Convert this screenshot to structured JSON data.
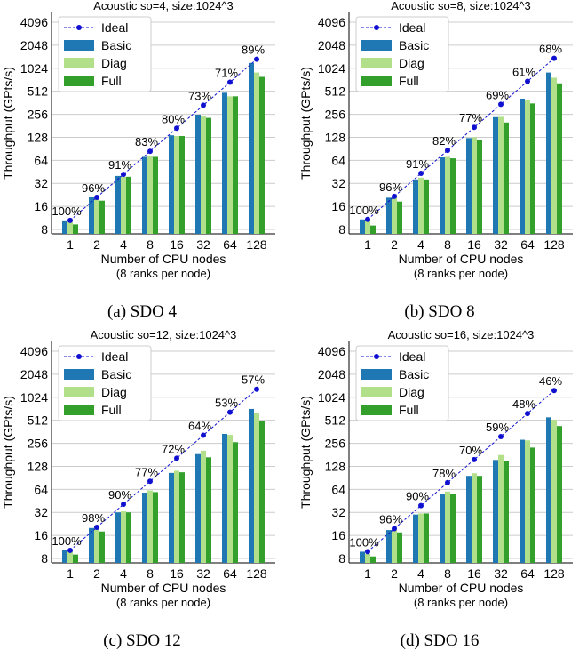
{
  "colors": {
    "ideal": "#1010d0",
    "basic": "#1f78b4",
    "diag": "#b2df8a",
    "full": "#33a02c"
  },
  "legend_labels": [
    "Ideal",
    "Basic",
    "Diag",
    "Full"
  ],
  "chart_data": [
    {
      "type": "bar",
      "title": "Acoustic so=4, size:1024^3",
      "caption": "(a) SDO 4",
      "xlabel": "Number of CPU nodes",
      "xlabel2": "(8 ranks per node)",
      "ylabel": "Throughput (GPts/s)",
      "yscale": "log2",
      "yticks": [
        "8",
        "16",
        "32",
        "64",
        "128",
        "256",
        "512",
        "1024",
        "2048",
        "4096"
      ],
      "ylim": [
        7,
        5500
      ],
      "categories": [
        "1",
        "2",
        "4",
        "8",
        "16",
        "32",
        "64",
        "128"
      ],
      "series": [
        {
          "name": "Ideal",
          "type": "line",
          "values": [
            10.5,
            21,
            42,
            84,
            168,
            336,
            672,
            1344
          ]
        },
        {
          "name": "Basic",
          "values": [
            10.5,
            21,
            40,
            71,
            136,
            253,
            490,
            1200
          ]
        },
        {
          "name": "Diag",
          "values": [
            10.0,
            21,
            39,
            72,
            133,
            240,
            440,
            900
          ]
        },
        {
          "name": "Full",
          "values": [
            9.3,
            19,
            39,
            71,
            133,
            230,
            440,
            790
          ]
        }
      ],
      "efficiency_labels": [
        "100%",
        "96%",
        "91%",
        "83%",
        "80%",
        "73%",
        "71%",
        "89%"
      ]
    },
    {
      "type": "bar",
      "title": "Acoustic so=8, size:1024^3",
      "caption": "(b) SDO 8",
      "xlabel": "Number of CPU nodes",
      "xlabel2": "(8 ranks per node)",
      "ylabel": "Throughput (GPts/s)",
      "yscale": "log2",
      "yticks": [
        "8",
        "16",
        "32",
        "64",
        "128",
        "256",
        "512",
        "1024",
        "2048",
        "4096"
      ],
      "ylim": [
        7,
        5500
      ],
      "categories": [
        "1",
        "2",
        "4",
        "8",
        "16",
        "32",
        "64",
        "128"
      ],
      "series": [
        {
          "name": "Ideal",
          "type": "line",
          "values": [
            10.8,
            21.6,
            43.2,
            86.4,
            172.8,
            345.6,
            691.2,
            1382.4
          ]
        },
        {
          "name": "Basic",
          "values": [
            10.8,
            20.8,
            36,
            70,
            125,
            235,
            410,
            900
          ]
        },
        {
          "name": "Diag",
          "values": [
            10.2,
            21,
            38,
            71,
            128,
            237,
            390,
            770
          ]
        },
        {
          "name": "Full",
          "values": [
            9.0,
            18.5,
            36,
            68,
            117,
            200,
            355,
            650
          ]
        }
      ],
      "efficiency_labels": [
        "100%",
        "96%",
        "91%",
        "82%",
        "77%",
        "69%",
        "61%",
        "68%"
      ]
    },
    {
      "type": "bar",
      "title": "Acoustic so=12, size:1024^3",
      "caption": "(c) SDO 12",
      "xlabel": "Number of CPU nodes",
      "xlabel2": "(8 ranks per node)",
      "ylabel": "Throughput (GPts/s)",
      "yscale": "log2",
      "yticks": [
        "8",
        "16",
        "32",
        "64",
        "128",
        "256",
        "512",
        "1024",
        "2048",
        "4096"
      ],
      "ylim": [
        7,
        5500
      ],
      "categories": [
        "1",
        "2",
        "4",
        "8",
        "16",
        "32",
        "64",
        "128"
      ],
      "series": [
        {
          "name": "Ideal",
          "type": "line",
          "values": [
            10.2,
            20.4,
            40.8,
            81.6,
            163.2,
            326.4,
            652.8,
            1305.6
          ]
        },
        {
          "name": "Basic",
          "values": [
            10.2,
            20,
            32,
            58,
            105,
            185,
            340,
            720
          ]
        },
        {
          "name": "Diag",
          "values": [
            10.0,
            21,
            33,
            62,
            112,
            205,
            330,
            630
          ]
        },
        {
          "name": "Full",
          "values": [
            9.0,
            18,
            32,
            59,
            107,
            168,
            265,
            495
          ]
        }
      ],
      "efficiency_labels": [
        "100%",
        "98%",
        "90%",
        "77%",
        "72%",
        "64%",
        "53%",
        "57%"
      ]
    },
    {
      "type": "bar",
      "title": "Acoustic so=16, size:1024^3",
      "caption": "(d) SDO 16",
      "xlabel": "Number of CPU nodes",
      "xlabel2": "(8 ranks per node)",
      "ylabel": "Throughput (GPts/s)",
      "yscale": "log2",
      "yticks": [
        "8",
        "16",
        "32",
        "64",
        "128",
        "256",
        "512",
        "1024",
        "2048",
        "4096"
      ],
      "ylim": [
        7,
        5500
      ],
      "categories": [
        "1",
        "2",
        "4",
        "8",
        "16",
        "32",
        "64",
        "128"
      ],
      "series": [
        {
          "name": "Ideal",
          "type": "line",
          "values": [
            9.8,
            19.6,
            39.2,
            78.4,
            156.8,
            313.6,
            627.2,
            1254.4
          ]
        },
        {
          "name": "Basic",
          "values": [
            9.8,
            18.8,
            30,
            55,
            96,
            155,
            285,
            560
          ]
        },
        {
          "name": "Diag",
          "values": [
            9.2,
            19.5,
            31,
            60,
            104,
            180,
            280,
            520
          ]
        },
        {
          "name": "Full",
          "values": [
            8.5,
            17.5,
            31,
            55,
            96,
            150,
            225,
            430
          ]
        }
      ],
      "efficiency_labels": [
        "100%",
        "96%",
        "90%",
        "78%",
        "70%",
        "59%",
        "48%",
        "46%"
      ]
    }
  ]
}
